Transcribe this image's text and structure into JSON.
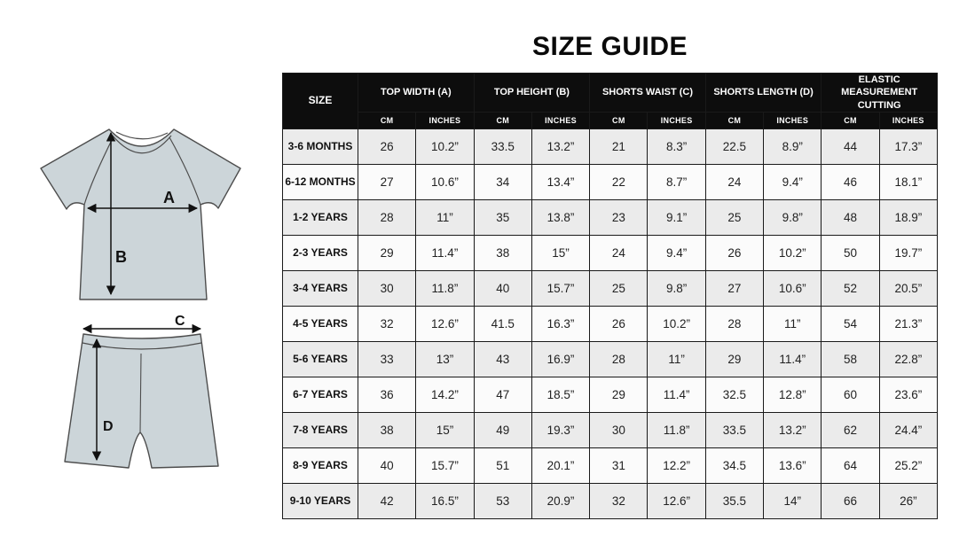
{
  "chart_data": {
    "type": "table",
    "title": "SIZE GUIDE",
    "size_column_header": "SIZE",
    "column_groups": [
      "TOP WIDTH (A)",
      "TOP HEIGHT (B)",
      "SHORTS WAIST (C)",
      "SHORTS LENGTH (D)",
      "ELASTIC MEASUREMENT CUTTING"
    ],
    "unit_headers": [
      "CM",
      "INCHES"
    ],
    "rows": [
      {
        "size": "3-6 MONTHS",
        "values": [
          "26",
          "10.2”",
          "33.5",
          "13.2”",
          "21",
          "8.3”",
          "22.5",
          "8.9”",
          "44",
          "17.3”"
        ]
      },
      {
        "size": "6-12 MONTHS",
        "values": [
          "27",
          "10.6”",
          "34",
          "13.4”",
          "22",
          "8.7”",
          "24",
          "9.4”",
          "46",
          "18.1”"
        ]
      },
      {
        "size": "1-2 YEARS",
        "values": [
          "28",
          "11”",
          "35",
          "13.8”",
          "23",
          "9.1”",
          "25",
          "9.8”",
          "48",
          "18.9”"
        ]
      },
      {
        "size": "2-3 YEARS",
        "values": [
          "29",
          "11.4”",
          "38",
          "15”",
          "24",
          "9.4”",
          "26",
          "10.2”",
          "50",
          "19.7”"
        ]
      },
      {
        "size": "3-4 YEARS",
        "values": [
          "30",
          "11.8”",
          "40",
          "15.7”",
          "25",
          "9.8”",
          "27",
          "10.6”",
          "52",
          "20.5”"
        ]
      },
      {
        "size": "4-5 YEARS",
        "values": [
          "32",
          "12.6”",
          "41.5",
          "16.3”",
          "26",
          "10.2”",
          "28",
          "11”",
          "54",
          "21.3”"
        ]
      },
      {
        "size": "5-6 YEARS",
        "values": [
          "33",
          "13”",
          "43",
          "16.9”",
          "28",
          "11”",
          "29",
          "11.4”",
          "58",
          "22.8”"
        ]
      },
      {
        "size": "6-7 YEARS",
        "values": [
          "36",
          "14.2”",
          "47",
          "18.5”",
          "29",
          "11.4”",
          "32.5",
          "12.8”",
          "60",
          "23.6”"
        ]
      },
      {
        "size": "7-8 YEARS",
        "values": [
          "38",
          "15”",
          "49",
          "19.3”",
          "30",
          "11.8”",
          "33.5",
          "13.2”",
          "62",
          "24.4”"
        ]
      },
      {
        "size": "8-9 YEARS",
        "values": [
          "40",
          "15.7”",
          "51",
          "20.1”",
          "31",
          "12.2”",
          "34.5",
          "13.6”",
          "64",
          "25.2”"
        ]
      },
      {
        "size": "9-10 YEARS",
        "values": [
          "42",
          "16.5”",
          "53",
          "20.9”",
          "32",
          "12.6”",
          "35.5",
          "14”",
          "66",
          "26”"
        ]
      }
    ]
  },
  "diagram": {
    "top_width_label": "A",
    "top_height_label": "B",
    "shorts_waist_label": "C",
    "shorts_length_label": "D"
  },
  "colors": {
    "header_bg": "#0d0d0d",
    "header_text": "#ffffff",
    "row_stripe": "#ebebeb",
    "row_plain": "#fbfbfb",
    "table_border": "#1a1a1a",
    "garment_fill": "#ccd5d9",
    "garment_stroke": "#4d4d4d",
    "arrow_color": "#111111"
  }
}
